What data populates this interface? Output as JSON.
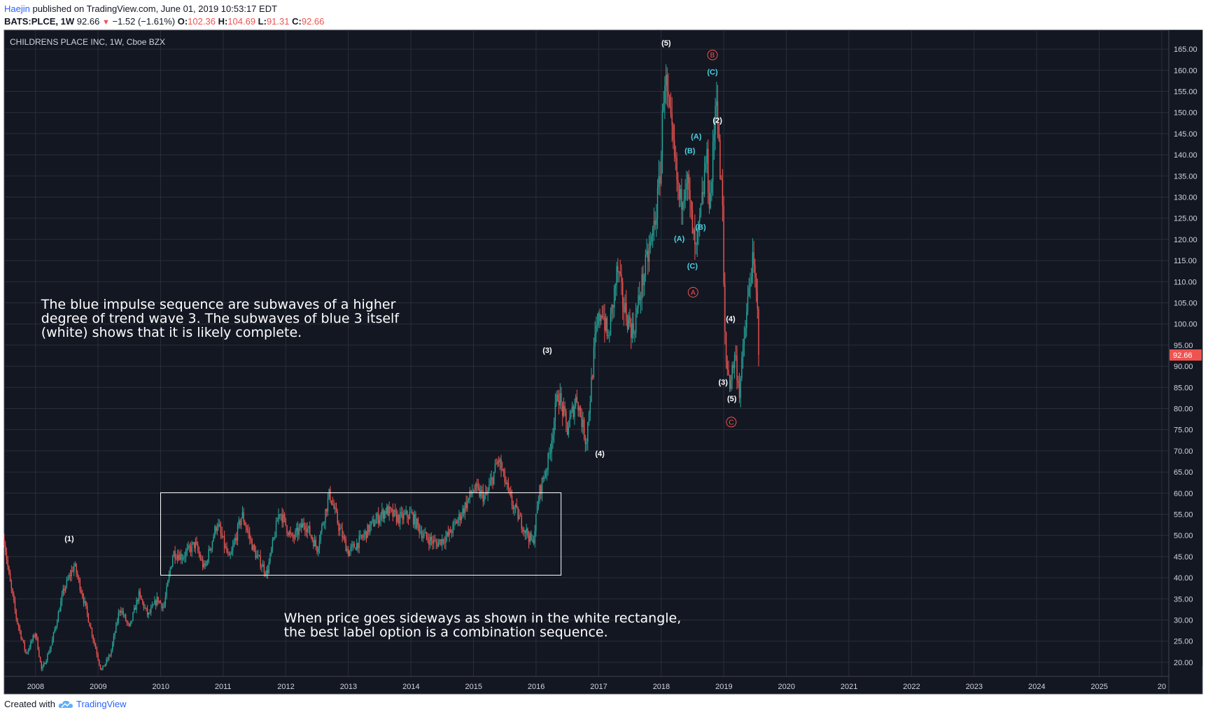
{
  "header": {
    "user": "Haejin",
    "published_text": " published on TradingView.com, June 01, 2019 10:53:17 EDT"
  },
  "quote": {
    "symbol": "BATS:PLCE, 1W",
    "last": "92.66",
    "change": "−1.52 (−1.61%)",
    "o_label": "O:",
    "o_value": "102.36",
    "h_label": "H:",
    "h_value": "104.69",
    "l_label": "L:",
    "l_value": "91.31",
    "c_label": "C:",
    "c_value": "92.66"
  },
  "footer": {
    "created_with": "Created with",
    "brand": "TradingView",
    "icon": "tradingview-cloud-icon"
  },
  "colors": {
    "background": "#131722",
    "grid": "#2a2e39",
    "up": "#26a69a",
    "down": "#ef5350",
    "wave_white": "#ffffff",
    "wave_blue": "#4dd0e1",
    "wave_red": "#ef5350",
    "price_tag": "#ef5350"
  },
  "chart_data": {
    "type": "candlestick",
    "title": "CHILDRENS PLACE INC, 1W, Cboe BZX",
    "x_ticks": [
      "2008",
      "2009",
      "2010",
      "2011",
      "2012",
      "2013",
      "2014",
      "2015",
      "2016",
      "2017",
      "2018",
      "2019",
      "2020",
      "2021",
      "2022",
      "2023",
      "2024",
      "2025",
      "20"
    ],
    "y_ticks": [
      "165.00",
      "160.00",
      "155.00",
      "150.00",
      "145.00",
      "140.00",
      "135.00",
      "130.00",
      "125.00",
      "120.00",
      "115.00",
      "110.00",
      "105.00",
      "100.00",
      "95.00",
      "90.00",
      "85.00",
      "80.00",
      "75.00",
      "70.00",
      "65.00",
      "60.00",
      "55.00",
      "50.00",
      "45.00",
      "40.00",
      "35.00",
      "30.00",
      "25.00",
      "20.00"
    ],
    "ylim": [
      17,
      167
    ],
    "xlim": [
      2007.5,
      2026.0
    ],
    "last_price": "92.66",
    "grid": true,
    "price_path": [
      [
        2007.5,
        49
      ],
      [
        2007.58,
        40
      ],
      [
        2007.7,
        30
      ],
      [
        2007.85,
        22
      ],
      [
        2008.0,
        27
      ],
      [
        2008.1,
        18
      ],
      [
        2008.25,
        24
      ],
      [
        2008.45,
        37
      ],
      [
        2008.62,
        43
      ],
      [
        2008.75,
        36
      ],
      [
        2008.9,
        27
      ],
      [
        2009.05,
        18
      ],
      [
        2009.2,
        22
      ],
      [
        2009.35,
        33
      ],
      [
        2009.5,
        28
      ],
      [
        2009.65,
        36
      ],
      [
        2009.8,
        31
      ],
      [
        2009.95,
        35
      ],
      [
        2010.05,
        33
      ],
      [
        2010.2,
        46
      ],
      [
        2010.35,
        45
      ],
      [
        2010.55,
        48
      ],
      [
        2010.7,
        42
      ],
      [
        2010.9,
        53
      ],
      [
        2011.1,
        44
      ],
      [
        2011.3,
        55
      ],
      [
        2011.5,
        46
      ],
      [
        2011.7,
        41
      ],
      [
        2011.9,
        56
      ],
      [
        2012.1,
        49
      ],
      [
        2012.3,
        53
      ],
      [
        2012.5,
        47
      ],
      [
        2012.7,
        60
      ],
      [
        2012.85,
        52
      ],
      [
        2013.0,
        46
      ],
      [
        2013.2,
        49
      ],
      [
        2013.4,
        53
      ],
      [
        2013.6,
        56
      ],
      [
        2013.8,
        54
      ],
      [
        2014.0,
        55
      ],
      [
        2014.2,
        50
      ],
      [
        2014.4,
        48
      ],
      [
        2014.6,
        50
      ],
      [
        2014.8,
        55
      ],
      [
        2015.0,
        61
      ],
      [
        2015.2,
        59
      ],
      [
        2015.4,
        68
      ],
      [
        2015.6,
        58
      ],
      [
        2015.8,
        52
      ],
      [
        2015.95,
        48
      ],
      [
        2016.05,
        60
      ],
      [
        2016.2,
        68
      ],
      [
        2016.35,
        84
      ],
      [
        2016.5,
        75
      ],
      [
        2016.65,
        83
      ],
      [
        2016.8,
        72
      ],
      [
        2016.95,
        97
      ],
      [
        2017.05,
        104
      ],
      [
        2017.15,
        96
      ],
      [
        2017.3,
        113
      ],
      [
        2017.4,
        104
      ],
      [
        2017.55,
        98
      ],
      [
        2017.7,
        110
      ],
      [
        2017.85,
        120
      ],
      [
        2017.95,
        130
      ],
      [
        2018.0,
        140
      ],
      [
        2018.05,
        160
      ],
      [
        2018.12,
        150
      ],
      [
        2018.2,
        140
      ],
      [
        2018.3,
        128
      ],
      [
        2018.4,
        136
      ],
      [
        2018.5,
        122
      ],
      [
        2018.55,
        116
      ],
      [
        2018.65,
        128
      ],
      [
        2018.72,
        140
      ],
      [
        2018.78,
        128
      ],
      [
        2018.84,
        143
      ],
      [
        2018.88,
        158
      ],
      [
        2018.93,
        138
      ],
      [
        2018.98,
        128
      ],
      [
        2019.0,
        108
      ],
      [
        2019.03,
        92
      ],
      [
        2019.1,
        86
      ],
      [
        2019.18,
        93
      ],
      [
        2019.25,
        84
      ],
      [
        2019.35,
        100
      ],
      [
        2019.45,
        115
      ],
      [
        2019.5,
        110
      ],
      [
        2019.55,
        100
      ],
      [
        2019.56,
        92.66
      ]
    ],
    "wave_labels": [
      {
        "text": "(1)",
        "x": 2008.54,
        "y": 49.3,
        "color": "white"
      },
      {
        "text": "(3)",
        "x": 2016.18,
        "y": 93.8,
        "color": "white"
      },
      {
        "text": "(4)",
        "x": 2017.02,
        "y": 69.4,
        "color": "white"
      },
      {
        "text": "(5)",
        "x": 2018.08,
        "y": 166.5,
        "color": "white"
      },
      {
        "text": "(2)",
        "x": 2018.9,
        "y": 148.2,
        "color": "white"
      },
      {
        "text": "(4)",
        "x": 2019.11,
        "y": 101.3,
        "color": "white"
      },
      {
        "text": "(3)",
        "x": 2018.99,
        "y": 86.3,
        "color": "white"
      },
      {
        "text": "(5)",
        "x": 2019.13,
        "y": 82.4,
        "color": "white"
      },
      {
        "text": "(A)",
        "x": 2018.29,
        "y": 120.2,
        "color": "blue"
      },
      {
        "text": "(B)",
        "x": 2018.46,
        "y": 141.0,
        "color": "blue"
      },
      {
        "text": "(A)",
        "x": 2018.56,
        "y": 144.4,
        "color": "blue"
      },
      {
        "text": "(B)",
        "x": 2018.63,
        "y": 123.0,
        "color": "blue"
      },
      {
        "text": "(C)",
        "x": 2018.5,
        "y": 113.8,
        "color": "blue"
      },
      {
        "text": "(C)",
        "x": 2018.82,
        "y": 159.6,
        "color": "blue"
      },
      {
        "text": "B",
        "x": 2018.82,
        "y": 163.6,
        "color": "red",
        "circled": true
      },
      {
        "text": "A",
        "x": 2018.51,
        "y": 107.5,
        "color": "red",
        "circled": true
      },
      {
        "text": "C",
        "x": 2019.12,
        "y": 76.8,
        "color": "red",
        "circled": true
      }
    ],
    "rectangle": {
      "x0": 2010.0,
      "x1": 2016.4,
      "y0": 40.6,
      "y1": 60.1
    },
    "annotations": [
      {
        "lines": [
          "The blue impulse sequence are subwaves of a higher",
          "degree of trend wave 3. The subwaves of blue 3 itself",
          "(white) shows that it is likely complete."
        ],
        "x": 2008.09,
        "y": 103.6
      },
      {
        "lines": [
          "When price goes sideways as shown in the white rectangle,",
          "the best label option is a combination sequence."
        ],
        "x": 2011.97,
        "y": 29.4
      }
    ]
  }
}
